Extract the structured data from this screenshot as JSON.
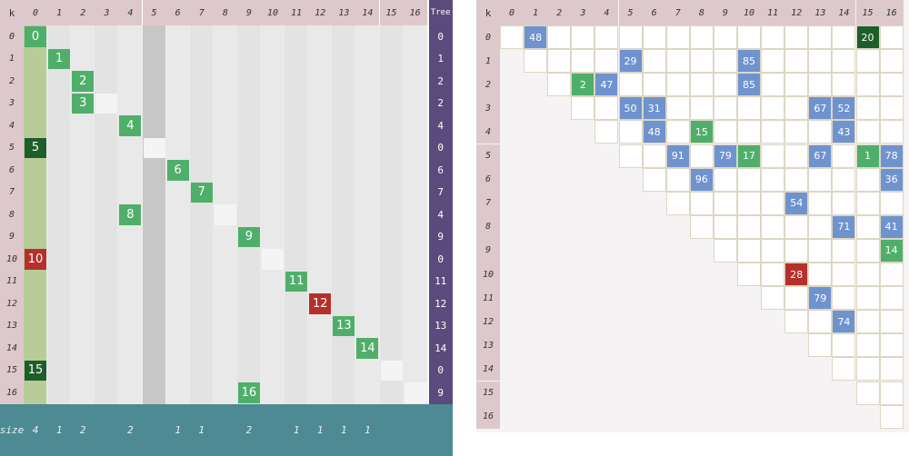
{
  "left": {
    "corner_label": "k",
    "tree_header": "Tree",
    "size_label": "size",
    "col_labels": [
      "0",
      "1",
      "2",
      "3",
      "4",
      "5",
      "6",
      "7",
      "8",
      "9",
      "10",
      "11",
      "12",
      "13",
      "14",
      "15",
      "16"
    ],
    "row_labels": [
      "0",
      "1",
      "2",
      "3",
      "4",
      "5",
      "6",
      "7",
      "8",
      "9",
      "10",
      "11",
      "12",
      "13",
      "14",
      "15",
      "16"
    ],
    "tree_values": [
      "0",
      "1",
      "2",
      "2",
      "4",
      "0",
      "6",
      "7",
      "4",
      "9",
      "0",
      "11",
      "12",
      "13",
      "14",
      "0",
      "9"
    ],
    "size_values": [
      "4",
      "1",
      "2",
      "",
      "2",
      "",
      "1",
      "1",
      "",
      "2",
      "",
      "1",
      "1",
      "1",
      "1",
      "",
      ""
    ],
    "cells": [
      {
        "row": 0,
        "col": 0,
        "text": "0",
        "kind": "green"
      },
      {
        "row": 1,
        "col": 1,
        "text": "1",
        "kind": "green"
      },
      {
        "row": 2,
        "col": 2,
        "text": "2",
        "kind": "green"
      },
      {
        "row": 3,
        "col": 2,
        "text": "3",
        "kind": "green"
      },
      {
        "row": 4,
        "col": 4,
        "text": "4",
        "kind": "green"
      },
      {
        "row": 5,
        "col": 0,
        "text": "5",
        "kind": "dark"
      },
      {
        "row": 6,
        "col": 6,
        "text": "6",
        "kind": "green"
      },
      {
        "row": 7,
        "col": 7,
        "text": "7",
        "kind": "green"
      },
      {
        "row": 8,
        "col": 4,
        "text": "8",
        "kind": "green"
      },
      {
        "row": 9,
        "col": 9,
        "text": "9",
        "kind": "green"
      },
      {
        "row": 10,
        "col": 0,
        "text": "10",
        "kind": "red"
      },
      {
        "row": 11,
        "col": 11,
        "text": "11",
        "kind": "green"
      },
      {
        "row": 12,
        "col": 12,
        "text": "12",
        "kind": "red"
      },
      {
        "row": 13,
        "col": 13,
        "text": "13",
        "kind": "green"
      },
      {
        "row": 14,
        "col": 14,
        "text": "14",
        "kind": "green"
      },
      {
        "row": 15,
        "col": 0,
        "text": "15",
        "kind": "dark"
      },
      {
        "row": 16,
        "col": 9,
        "text": "16",
        "kind": "green"
      }
    ]
  },
  "right": {
    "corner_label": "k",
    "col_labels": [
      "0",
      "1",
      "2",
      "3",
      "4",
      "5",
      "6",
      "7",
      "8",
      "9",
      "10",
      "11",
      "12",
      "13",
      "14",
      "15",
      "16"
    ],
    "row_labels": [
      "0",
      "1",
      "2",
      "3",
      "4",
      "5",
      "6",
      "7",
      "8",
      "9",
      "10",
      "11",
      "12",
      "13",
      "14",
      "15",
      "16"
    ],
    "cells": [
      {
        "row": 0,
        "col": 1,
        "text": "48",
        "kind": "blue"
      },
      {
        "row": 0,
        "col": 15,
        "text": "20",
        "kind": "dark"
      },
      {
        "row": 1,
        "col": 5,
        "text": "29",
        "kind": "blue"
      },
      {
        "row": 1,
        "col": 10,
        "text": "85",
        "kind": "blue"
      },
      {
        "row": 2,
        "col": 3,
        "text": "2",
        "kind": "green"
      },
      {
        "row": 2,
        "col": 4,
        "text": "47",
        "kind": "blue"
      },
      {
        "row": 2,
        "col": 10,
        "text": "85",
        "kind": "blue"
      },
      {
        "row": 3,
        "col": 5,
        "text": "50",
        "kind": "blue"
      },
      {
        "row": 3,
        "col": 6,
        "text": "31",
        "kind": "blue"
      },
      {
        "row": 3,
        "col": 13,
        "text": "67",
        "kind": "blue"
      },
      {
        "row": 3,
        "col": 14,
        "text": "52",
        "kind": "blue"
      },
      {
        "row": 4,
        "col": 6,
        "text": "48",
        "kind": "blue"
      },
      {
        "row": 4,
        "col": 8,
        "text": "15",
        "kind": "green"
      },
      {
        "row": 4,
        "col": 14,
        "text": "43",
        "kind": "blue"
      },
      {
        "row": 5,
        "col": 7,
        "text": "91",
        "kind": "blue"
      },
      {
        "row": 5,
        "col": 9,
        "text": "79",
        "kind": "blue"
      },
      {
        "row": 5,
        "col": 10,
        "text": "17",
        "kind": "green"
      },
      {
        "row": 5,
        "col": 13,
        "text": "67",
        "kind": "blue"
      },
      {
        "row": 5,
        "col": 15,
        "text": "1",
        "kind": "green"
      },
      {
        "row": 5,
        "col": 16,
        "text": "78",
        "kind": "blue"
      },
      {
        "row": 6,
        "col": 8,
        "text": "96",
        "kind": "blue"
      },
      {
        "row": 6,
        "col": 16,
        "text": "36",
        "kind": "blue"
      },
      {
        "row": 7,
        "col": 12,
        "text": "54",
        "kind": "blue"
      },
      {
        "row": 8,
        "col": 14,
        "text": "71",
        "kind": "blue"
      },
      {
        "row": 8,
        "col": 16,
        "text": "41",
        "kind": "blue"
      },
      {
        "row": 9,
        "col": 16,
        "text": "14",
        "kind": "green"
      },
      {
        "row": 10,
        "col": 12,
        "text": "28",
        "kind": "red"
      },
      {
        "row": 11,
        "col": 13,
        "text": "79",
        "kind": "blue"
      },
      {
        "row": 12,
        "col": 14,
        "text": "74",
        "kind": "blue"
      }
    ]
  },
  "colors": {
    "green": "#4faf6a",
    "dark": "#1f5e2a",
    "red": "#b5302b",
    "blue": "#6f93cf",
    "header": "#ddc9cc",
    "tree": "#5a4b7c",
    "size": "#4d8a94"
  }
}
